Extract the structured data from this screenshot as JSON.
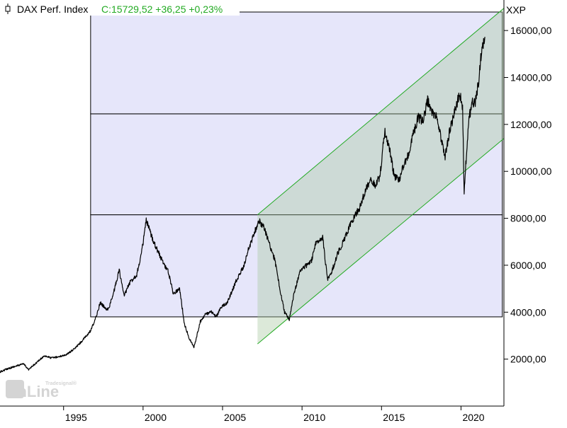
{
  "header": {
    "title": "DAX Perf. Index",
    "quote": "C:15729,52 +36,25 +0,23%",
    "quote_color": "#22aa22"
  },
  "y_axis": {
    "unit_label": "XXP",
    "ticks": [
      {
        "value": 2000,
        "label": "2000,00"
      },
      {
        "value": 4000,
        "label": "4000,00"
      },
      {
        "value": 6000,
        "label": "6000,00"
      },
      {
        "value": 8000,
        "label": "8000,00"
      },
      {
        "value": 10000,
        "label": "10000,00"
      },
      {
        "value": 12000,
        "label": "12000,00"
      },
      {
        "value": 14000,
        "label": "14000,00"
      },
      {
        "value": 16000,
        "label": "16000,00"
      }
    ]
  },
  "x_axis": {
    "ticks": [
      {
        "value": 1995,
        "label": "1995"
      },
      {
        "value": 2000,
        "label": "2000"
      },
      {
        "value": 2005,
        "label": "2005"
      },
      {
        "value": 2010,
        "label": "2010"
      },
      {
        "value": 2015,
        "label": "2015"
      },
      {
        "value": 2020,
        "label": "2020"
      }
    ]
  },
  "watermark": {
    "brand": "Tradesignal®",
    "text": "onLine"
  },
  "colors": {
    "price_line": "#000000",
    "box_fill": "#e6e6fa",
    "channel_line": "#22aa22",
    "channel_fill": "#a8c8a0",
    "quote_green": "#22aa22"
  },
  "chart_data": {
    "type": "line",
    "title": "DAX Perf. Index",
    "xlim": [
      1991.0,
      2022.7
    ],
    "ylim": [
      0,
      17300
    ],
    "grid": false,
    "series": [
      {
        "name": "DAX Perf. Index",
        "x": [
          1991.0,
          1991.5,
          1992.0,
          1992.5,
          1992.8,
          1993.3,
          1993.8,
          1994.2,
          1994.7,
          1995.2,
          1995.7,
          1996.2,
          1996.7,
          1997.0,
          1997.3,
          1997.6,
          1997.8,
          1998.1,
          1998.5,
          1998.8,
          1999.2,
          1999.6,
          1999.9,
          2000.2,
          2000.5,
          2000.8,
          2001.2,
          2001.6,
          2001.9,
          2002.3,
          2002.6,
          2002.9,
          2003.2,
          2003.6,
          2003.9,
          2004.3,
          2004.6,
          2004.9,
          2005.3,
          2005.6,
          2005.9,
          2006.3,
          2006.6,
          2006.9,
          2007.3,
          2007.6,
          2007.9,
          2008.3,
          2008.6,
          2008.9,
          2009.2,
          2009.5,
          2009.9,
          2010.3,
          2010.6,
          2010.9,
          2011.3,
          2011.6,
          2011.9,
          2012.3,
          2012.6,
          2012.9,
          2013.3,
          2013.6,
          2013.9,
          2014.3,
          2014.6,
          2014.9,
          2015.2,
          2015.5,
          2015.8,
          2016.1,
          2016.4,
          2016.7,
          2017.0,
          2017.3,
          2017.6,
          2017.9,
          2018.2,
          2018.5,
          2018.8,
          2019.0,
          2019.3,
          2019.6,
          2019.9,
          2020.1,
          2020.2,
          2020.3,
          2020.5,
          2020.7,
          2020.9,
          2021.1,
          2021.3,
          2021.5
        ],
        "y": [
          1450,
          1600,
          1700,
          1800,
          1550,
          1850,
          2150,
          2050,
          2100,
          2200,
          2450,
          2800,
          3200,
          3700,
          4400,
          4200,
          4100,
          4700,
          5800,
          4700,
          5300,
          5600,
          6500,
          7900,
          7300,
          6800,
          6200,
          5700,
          4800,
          5000,
          3500,
          2900,
          2500,
          3600,
          3900,
          4000,
          3800,
          4200,
          4400,
          4900,
          5400,
          5900,
          6600,
          7200,
          7900,
          7600,
          7000,
          6200,
          5000,
          4000,
          3700,
          4800,
          5800,
          6000,
          6200,
          7000,
          7200,
          5400,
          5800,
          6600,
          7000,
          7500,
          8100,
          8400,
          9000,
          9700,
          9400,
          9800,
          11700,
          11000,
          9800,
          9600,
          10300,
          10700,
          11600,
          12300,
          12100,
          13000,
          12500,
          12300,
          11200,
          10600,
          11800,
          12500,
          13300,
          12800,
          9000,
          10300,
          12200,
          13000,
          12900,
          13800,
          15200,
          15730
        ]
      }
    ],
    "overlays": {
      "boxes": [
        {
          "x0": 1996.7,
          "x1": 2022.6,
          "y0": 3800,
          "y1": 8150,
          "fill": "#e6e6fa"
        },
        {
          "x0": 1996.7,
          "x1": 2022.6,
          "y0": 8150,
          "y1": 12450,
          "fill": "#e6e6fa"
        },
        {
          "x0": 1996.7,
          "x1": 2022.6,
          "y0": 12450,
          "y1": 17300,
          "fill": "#e6e6fa"
        }
      ],
      "channel": {
        "x0": 2007.2,
        "x1": 2022.7,
        "upper": [
          8150,
          16950
        ],
        "lower": [
          2650,
          11400
        ]
      }
    }
  }
}
